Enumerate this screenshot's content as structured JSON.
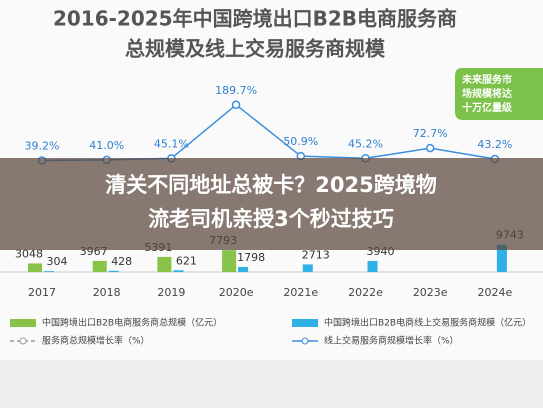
{
  "chart_data": {
    "type": "bar",
    "title": "2016-2025年中国跨境出口B2B电商服务商",
    "subtitle": "总规模及线上交易服务商规模",
    "categories": [
      "2017",
      "2018",
      "2019",
      "2020e",
      "2021e",
      "2022e",
      "2023e",
      "2024e"
    ],
    "series": [
      {
        "name": "中国跨境出口B2B电商服务商总规模（亿元）",
        "color": "#86c348",
        "values": [
          3048,
          3967,
          5391,
          7793,
          null,
          null,
          null,
          null
        ]
      },
      {
        "name": "中国跨境出口B2B电商线上交易服务商规模（亿元）",
        "color": "#2fb1e6",
        "values": [
          304,
          428,
          621,
          1798,
          2713,
          3940,
          null,
          9743
        ]
      },
      {
        "name": "服务商总规模增长率（%）",
        "type": "line",
        "color": "#9a9a9a",
        "values": [
          null,
          null,
          null,
          null,
          null,
          null,
          null,
          null
        ]
      },
      {
        "name": "线上交易服务商规模增长率（%）",
        "type": "line",
        "color": "#3d8fe0",
        "values": [
          39.2,
          41.0,
          45.1,
          189.7,
          50.9,
          45.2,
          72.7,
          43.2
        ],
        "value_labels": [
          "39.2%",
          "41.0%",
          "45.1%",
          "189.7%",
          "50.9%",
          "45.2%",
          "72.7%",
          "43.2%"
        ]
      }
    ]
  },
  "callout": {
    "lines": [
      "未来服务市",
      "场规模将达",
      "十万亿量级"
    ]
  },
  "overlay": {
    "lines": [
      "清关不同地址总被卡？2025跨境物",
      "流老司机亲授3个秒过技巧"
    ]
  }
}
